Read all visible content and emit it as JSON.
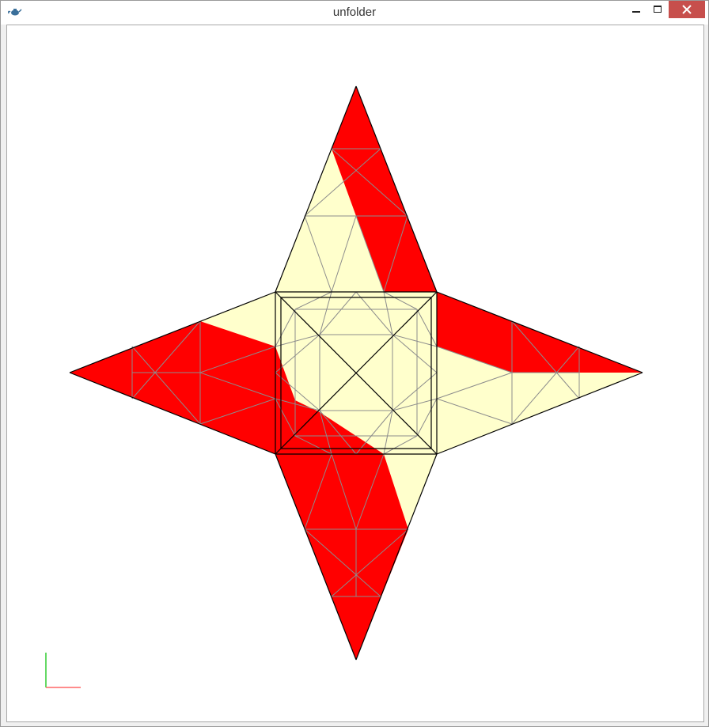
{
  "window": {
    "title": "unfolder",
    "app_icon": "teapot-icon",
    "controls": [
      "minimize-icon",
      "maximize-icon",
      "close-icon"
    ]
  },
  "colors": {
    "face_red": "#ff0000",
    "face_cream": "#ffffcc",
    "fold_line": "#8c8c8c",
    "outline": "#000000",
    "axis_x": "#ff6666",
    "axis_y": "#33cc33",
    "close_button": "#c74f4c"
  }
}
